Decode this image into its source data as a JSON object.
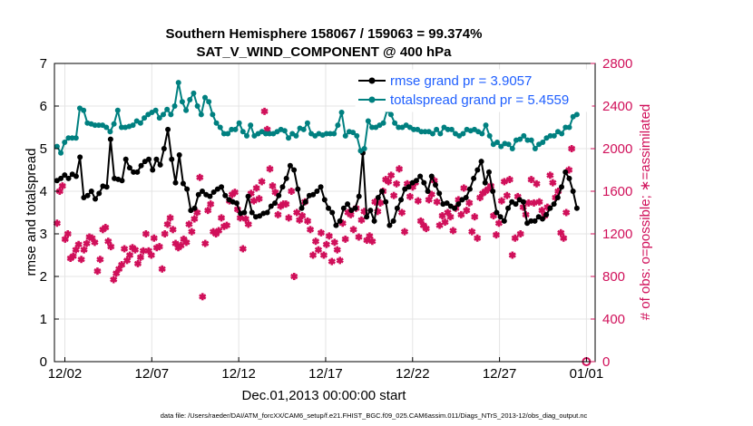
{
  "chart_data": {
    "type": "line",
    "title": "Southern Hemisphere 158067 / 159063 = 99.374%",
    "subtitle": "SAT_V_WIND_COMPONENT @ 400 hPa",
    "xlabel": "Dec.01,2013 00:00:00 start",
    "ylabel": "rmse and totalspread",
    "ylabel_right": "# of obs: o=possible; ∗=assimilated",
    "footnote": "data file: /Users/raeder/DAI/ATM_forcXX/CAM6_setup/f.e21.FHIST_BGC.f09_025.CAM6assim.011/Diags_NTrS_2013-12/obs_diag_output.nc",
    "x_range": [
      0.4,
      31.5
    ],
    "x_ticks": [
      {
        "x": 1,
        "label": "12/02"
      },
      {
        "x": 6,
        "label": "12/07"
      },
      {
        "x": 11,
        "label": "12/12"
      },
      {
        "x": 16,
        "label": "12/17"
      },
      {
        "x": 21,
        "label": "12/22"
      },
      {
        "x": 26,
        "label": "12/27"
      },
      {
        "x": 31,
        "label": "01/01"
      }
    ],
    "ylim": [
      0,
      7
    ],
    "y_ticks": [
      "0",
      "1",
      "2",
      "3",
      "4",
      "5",
      "6",
      "7"
    ],
    "ylim_right": [
      0,
      2800
    ],
    "y_ticks_right": [
      "0",
      "400",
      "800",
      "1200",
      "1600",
      "2000",
      "2400",
      "2800"
    ],
    "colors": {
      "rmse": "#000000",
      "spread": "#008080",
      "obs": "#d0105a",
      "legend_text": "#1f5fff"
    },
    "series": [
      {
        "name": "rmse grand pr = 3.9057",
        "key": "rmse",
        "values": [
          4.25,
          4.3,
          4.38,
          4.3,
          4.4,
          4.35,
          4.8,
          3.85,
          3.9,
          4.0,
          3.82,
          3.95,
          4.12,
          4.1,
          5.22,
          4.3,
          4.28,
          4.25,
          4.75,
          4.55,
          4.45,
          4.45,
          4.6,
          4.7,
          4.75,
          4.5,
          4.75,
          4.62,
          5.0,
          5.45,
          4.75,
          4.2,
          4.85,
          4.18,
          4.05,
          3.55,
          3.6,
          3.92,
          4.0,
          3.92,
          3.88,
          3.98,
          4.05,
          4.1,
          3.9,
          3.8,
          3.75,
          3.72,
          3.48,
          3.5,
          3.88,
          3.5,
          3.4,
          3.42,
          3.48,
          3.5,
          3.65,
          3.72,
          3.9,
          4.1,
          4.3,
          4.6,
          4.5,
          4.05,
          3.6,
          3.75,
          3.9,
          3.92,
          4.0,
          4.1,
          3.8,
          3.6,
          3.5,
          3.2,
          3.3,
          3.6,
          3.7,
          3.55,
          3.6,
          3.88,
          4.9,
          3.4,
          3.55,
          3.3,
          3.85,
          4.0,
          3.75,
          3.2,
          3.3,
          3.6,
          3.8,
          4.05,
          4.1,
          4.2,
          4.25,
          4.35,
          4.2,
          4.0,
          4.35,
          4.15,
          3.95,
          3.7,
          3.72,
          3.65,
          3.6,
          3.7,
          3.8,
          3.85,
          4.05,
          4.3,
          4.5,
          4.7,
          4.2,
          4.45,
          4.0,
          3.5,
          3.4,
          3.3,
          3.6,
          3.75,
          3.7,
          3.8,
          3.75,
          3.25,
          3.3,
          3.3,
          3.4,
          3.35,
          3.45,
          3.6,
          3.7,
          3.85,
          4.1,
          4.45,
          4.3,
          4.0,
          3.6
        ]
      },
      {
        "name": "totalspread grand pr = 5.4559",
        "key": "spread",
        "values": [
          5.05,
          4.9,
          5.15,
          5.25,
          5.25,
          5.25,
          5.95,
          5.9,
          5.6,
          5.58,
          5.55,
          5.55,
          5.55,
          5.5,
          5.4,
          5.58,
          5.9,
          5.5,
          5.5,
          5.52,
          5.55,
          5.65,
          5.6,
          5.72,
          5.8,
          5.85,
          5.9,
          5.72,
          5.8,
          5.92,
          5.8,
          6.0,
          6.55,
          6.1,
          5.9,
          6.15,
          6.3,
          6.0,
          5.8,
          6.2,
          6.1,
          5.8,
          5.6,
          5.5,
          5.35,
          5.35,
          5.45,
          5.45,
          5.6,
          5.4,
          5.3,
          5.55,
          5.3,
          5.35,
          5.4,
          5.35,
          5.35,
          5.35,
          5.4,
          5.45,
          5.42,
          5.25,
          5.35,
          5.3,
          5.48,
          5.45,
          5.6,
          5.35,
          5.3,
          5.35,
          5.32,
          5.35,
          5.35,
          5.35,
          5.55,
          5.85,
          5.3,
          5.4,
          5.38,
          5.3,
          4.95,
          5.0,
          5.65,
          5.5,
          5.5,
          5.55,
          5.6,
          5.9,
          5.8,
          5.6,
          5.5,
          5.5,
          5.55,
          5.5,
          5.45,
          5.45,
          5.4,
          5.4,
          5.4,
          5.35,
          5.45,
          5.35,
          5.5,
          5.45,
          5.45,
          5.35,
          5.3,
          5.35,
          5.45,
          5.42,
          5.45,
          5.4,
          5.35,
          5.55,
          5.3,
          5.1,
          5.15,
          5.05,
          5.12,
          5.1,
          5.0,
          5.2,
          5.22,
          5.3,
          5.2,
          5.2,
          5.0,
          5.1,
          5.15,
          5.25,
          5.3,
          5.3,
          5.4,
          5.35,
          5.5,
          5.5,
          5.75,
          5.8
        ]
      }
    ],
    "obs_assimilated_name": "assimilated observations",
    "obs_assimilated": [
      1300,
      1600,
      1650,
      1150,
      1200,
      970,
      990,
      1050,
      1100,
      960,
      1050,
      1110,
      1170,
      1160,
      1120,
      850,
      960,
      1240,
      1260,
      1130,
      1080,
      770,
      830,
      870,
      910,
      1060,
      950,
      1000,
      1070,
      1050,
      920,
      980,
      1040,
      1200,
      1040,
      1000,
      1160,
      1070,
      1080,
      870,
      1200,
      1290,
      1350,
      1240,
      1110,
      1070,
      1090,
      1150,
      1120,
      1290,
      1220,
      1340,
      1400,
      1730,
      610,
      1110,
      1420,
      1480,
      1220,
      1200,
      1230,
      1350,
      1270,
      1280,
      1510,
      1570,
      1590,
      1430,
      1350,
      1060,
      1340,
      1290,
      1580,
      1510,
      1630,
      1530,
      1690,
      2350,
      2180,
      1810,
      1650,
      1590,
      1380,
      1460,
      1480,
      1480,
      1350,
      1600,
      800,
      1400,
      1330,
      1370,
      1500,
      1320,
      1240,
      1000,
      1130,
      1050,
      1210,
      1000,
      1100,
      1180,
      940,
      1120,
      1050,
      950,
      1300,
      1150,
      1400,
      1380,
      1240,
      1440,
      1170,
      1330,
      1410,
      1140,
      1180,
      1130,
      1500,
      1410,
      1490,
      1600,
      1710,
      1690,
      1750,
      1560,
      1670,
      1810,
      1400,
      1220,
      1670,
      1550,
      1640,
      1680,
      1510,
      1320,
      1280,
      1250,
      1520,
      1570,
      1700,
      1500,
      1280,
      1370,
      1310,
      1400,
      1360,
      1230,
      1440,
      1520,
      1380,
      1630,
      1420,
      1490,
      1220,
      1360,
      1160,
      1540,
      1580,
      1600,
      1620,
      1650,
      1370,
      1190,
      1300,
      1510,
      1690,
      1560,
      1710,
      1000,
      1160,
      1550,
      1200,
      1450,
      1380,
      1490,
      1710,
      1490,
      1670,
      1500,
      1420,
      1370,
      1450,
      1750,
      1680,
      1540,
      1600,
      1210,
      1160,
      1400,
      1800,
      2000
    ],
    "obs_possible_name": "possible observations",
    "obs_possible_points": [
      {
        "x": 31.0,
        "y": 0
      }
    ]
  }
}
